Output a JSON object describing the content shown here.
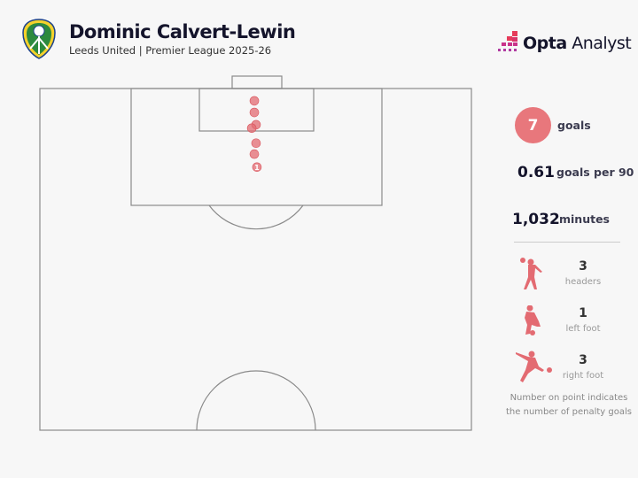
{
  "header": {
    "title": "Dominic Calvert-Lewin",
    "subtitle": "Leeds United | Premier League 2025-26",
    "brand_bold": "Opta",
    "brand_light": "Analyst",
    "crest_icon": "leeds-united-crest-icon"
  },
  "colors": {
    "goal": "#e36b72",
    "pitch_line": "#8a8a8a",
    "background": "#f7f7f7"
  },
  "stats": {
    "goals": {
      "value": "7",
      "label": "goals"
    },
    "per90": {
      "value": "0.61",
      "label": "goals per 90"
    },
    "minutes": {
      "value": "1,032",
      "label": "minutes"
    }
  },
  "breakdown": [
    {
      "count": "3",
      "label": "headers",
      "icon": "header-player-icon"
    },
    {
      "count": "1",
      "label": "left foot",
      "icon": "left-foot-player-icon"
    },
    {
      "count": "3",
      "label": "right foot",
      "icon": "right-foot-player-icon"
    }
  ],
  "note": "Number on point indicates the number of penalty goals",
  "shots": [
    {
      "x": 98.2,
      "y": 49.7
    },
    {
      "x": 96.5,
      "y": 49.7
    },
    {
      "x": 94.7,
      "y": 50.1
    },
    {
      "x": 94.2,
      "y": 49.1
    },
    {
      "x": 92.0,
      "y": 50.1
    },
    {
      "x": 90.4,
      "y": 49.7
    },
    {
      "x": 88.5,
      "y": 50.3,
      "penalties": "1"
    }
  ]
}
